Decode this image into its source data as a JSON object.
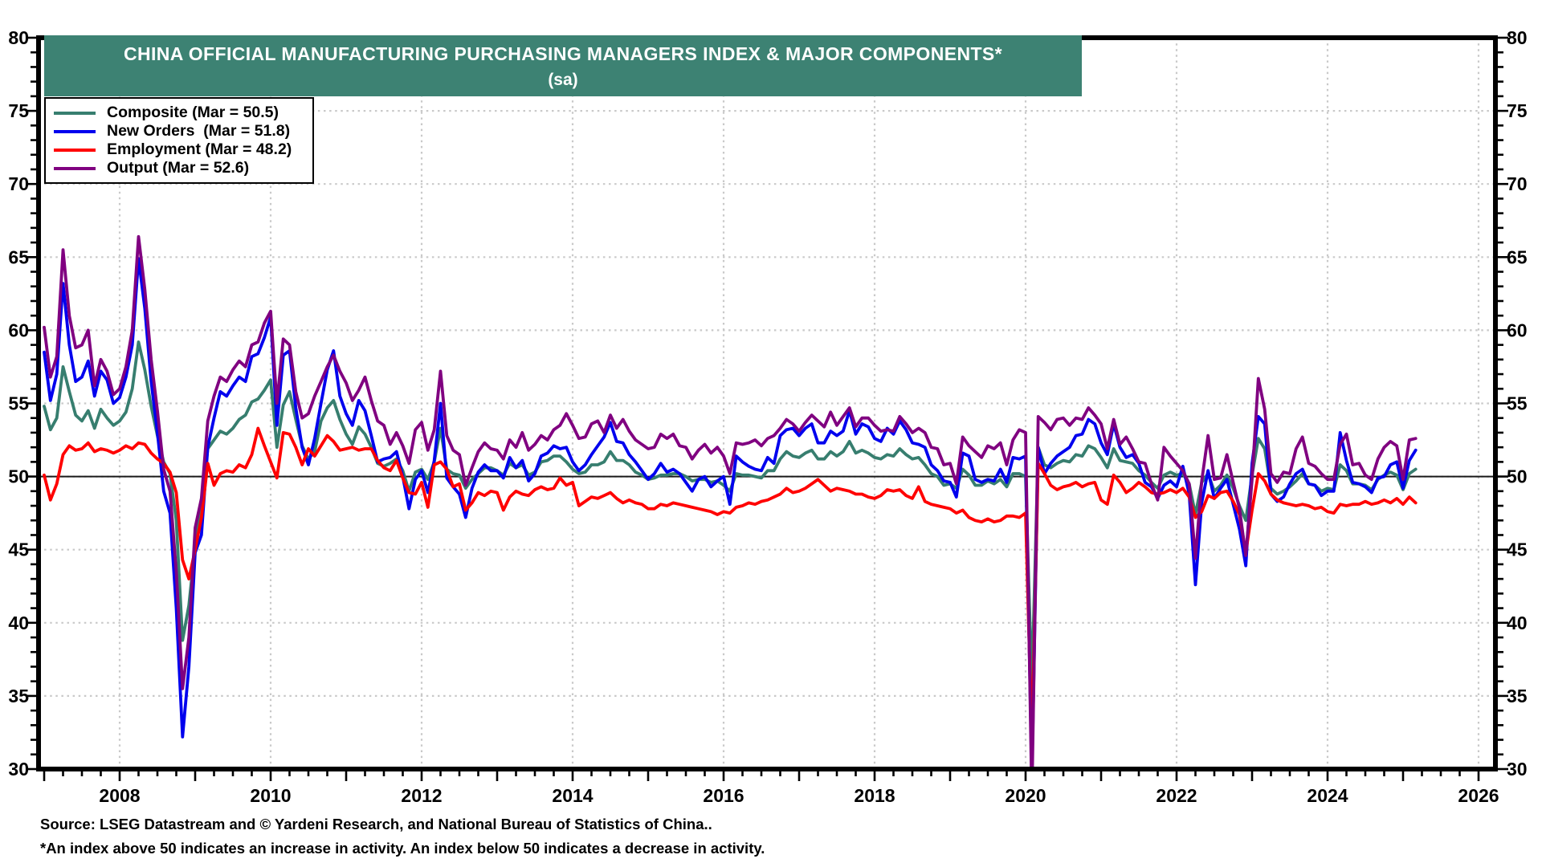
{
  "title": {
    "line1": "CHINA OFFICIAL MANUFACTURING  PURCHASING MANAGERS INDEX & MAJOR COMPONENTS*",
    "line2": "(sa)"
  },
  "colors": {
    "title_bar": "#3d8273",
    "composite": "#377e6f",
    "new_orders": "#0000ee",
    "employment": "#ff0000",
    "output": "#800080",
    "grid": "#c9c9c9",
    "frame": "#000000",
    "fifty_line": "#1a1a1a"
  },
  "footer": {
    "source": "Source: LSEG Datastream and © Yardeni Research, and National Bureau of Statistics of China..",
    "footnote": "*An index above 50 indicates an increase in activity. An index below 50 indicates a decrease in activity."
  },
  "chart_data": {
    "type": "line",
    "title": "CHINA OFFICIAL MANUFACTURING PURCHASING MANAGERS INDEX & MAJOR COMPONENTS* (sa)",
    "x_start": "2007-01",
    "x_end": "2025-03",
    "frequency": "monthly",
    "ylim": [
      30,
      80
    ],
    "xlim": [
      2006.92,
      2026.13
    ],
    "y_ticks": [
      30,
      35,
      40,
      45,
      50,
      55,
      60,
      65,
      70,
      75,
      80
    ],
    "x_ticks": [
      2008,
      2010,
      2012,
      2014,
      2016,
      2018,
      2020,
      2022,
      2024,
      2026
    ],
    "reference_line": 50,
    "grid": "dotted horizontal every 5 units, dotted vertical at even years",
    "legend_position": "top-left",
    "series": [
      {
        "name": "Composite",
        "legend_label": "Composite (Mar = 50.5)",
        "color_key": "composite",
        "latest": {
          "month": "Mar",
          "value": 50.5
        },
        "values": [
          54.8,
          53.2,
          54.0,
          57.5,
          55.8,
          54.2,
          53.8,
          54.5,
          53.3,
          54.6,
          54.0,
          53.5,
          53.8,
          54.4,
          56.0,
          59.2,
          57.3,
          54.8,
          52.8,
          51.0,
          50.2,
          47.0,
          38.8,
          41.2,
          45.3,
          48.0,
          51.9,
          52.5,
          53.1,
          52.9,
          53.3,
          53.9,
          54.2,
          55.1,
          55.3,
          55.9,
          56.6,
          52.0,
          54.9,
          55.8,
          53.9,
          52.1,
          51.2,
          51.7,
          53.8,
          54.7,
          55.2,
          53.9,
          52.9,
          52.2,
          53.4,
          52.9,
          52.0,
          50.9,
          50.7,
          50.9,
          51.2,
          50.4,
          49.0,
          50.3,
          50.5,
          49.8,
          51.0,
          53.3,
          50.5,
          50.2,
          50.1,
          49.2,
          49.8,
          50.2,
          50.6,
          50.6,
          50.4,
          50.1,
          50.9,
          50.6,
          50.8,
          50.1,
          50.3,
          51.0,
          51.1,
          51.4,
          51.4,
          51.0,
          50.5,
          50.2,
          50.3,
          50.8,
          50.8,
          51.0,
          51.7,
          51.1,
          51.1,
          50.8,
          50.3,
          50.1,
          49.8,
          49.9,
          50.1,
          50.1,
          50.2,
          50.2,
          50.0,
          49.7,
          49.8,
          49.8,
          49.6,
          49.7,
          49.4,
          49.0,
          50.2,
          50.1,
          50.1,
          50.0,
          49.9,
          50.4,
          50.4,
          51.2,
          51.7,
          51.4,
          51.3,
          51.6,
          51.8,
          51.2,
          51.2,
          51.7,
          51.4,
          51.7,
          52.4,
          51.6,
          51.8,
          51.6,
          51.3,
          51.2,
          51.5,
          51.4,
          51.9,
          51.5,
          51.2,
          51.3,
          50.8,
          50.2,
          50.0,
          49.4,
          49.5,
          49.2,
          50.5,
          50.1,
          49.4,
          49.4,
          49.7,
          49.5,
          49.8,
          49.3,
          50.2,
          50.2,
          50.0,
          35.7,
          52.0,
          50.8,
          50.6,
          50.9,
          51.1,
          51.0,
          51.5,
          51.4,
          52.1,
          51.9,
          51.3,
          50.6,
          51.9,
          51.1,
          51.0,
          50.9,
          50.4,
          50.1,
          49.6,
          49.2,
          50.1,
          50.3,
          50.1,
          50.2,
          49.5,
          47.4,
          49.6,
          50.2,
          49.0,
          49.4,
          50.1,
          49.2,
          48.0,
          47.0,
          50.1,
          52.6,
          51.9,
          49.2,
          48.8,
          49.0,
          49.3,
          49.7,
          50.2,
          49.5,
          49.4,
          49.0,
          49.2,
          49.1,
          50.8,
          50.4,
          49.5,
          49.5,
          49.4,
          49.1,
          49.8,
          50.1,
          50.3,
          50.1,
          49.1,
          50.2,
          50.5
        ]
      },
      {
        "name": "New Orders",
        "legend_label": "New Orders  (Mar = 51.8)",
        "color_key": "new_orders",
        "latest": {
          "month": "Mar",
          "value": 51.8
        },
        "values": [
          58.5,
          55.2,
          57.0,
          63.2,
          59.0,
          56.5,
          56.8,
          57.9,
          55.5,
          57.2,
          56.6,
          55.0,
          55.4,
          56.8,
          59.0,
          64.9,
          61.5,
          56.5,
          53.0,
          49.0,
          47.5,
          41.0,
          32.2,
          37.0,
          44.8,
          46.0,
          52.0,
          54.0,
          55.8,
          55.5,
          56.2,
          56.8,
          56.5,
          58.2,
          58.4,
          59.5,
          60.9,
          53.5,
          58.3,
          58.6,
          54.7,
          52.0,
          50.8,
          52.6,
          55.0,
          57.3,
          58.6,
          55.5,
          54.3,
          53.5,
          55.2,
          54.5,
          52.8,
          51.0,
          51.2,
          51.3,
          51.7,
          50.0,
          47.8,
          49.8,
          50.4,
          48.9,
          51.1,
          55.0,
          49.9,
          49.3,
          48.8,
          47.2,
          49.2,
          50.3,
          50.8,
          50.4,
          50.4,
          49.9,
          51.3,
          50.6,
          51.1,
          49.7,
          50.2,
          51.4,
          51.6,
          52.1,
          51.9,
          52.0,
          51.0,
          50.4,
          50.8,
          51.5,
          52.1,
          52.7,
          53.7,
          52.4,
          52.3,
          51.5,
          51.0,
          50.4,
          49.8,
          50.2,
          50.9,
          50.3,
          50.5,
          50.2,
          49.6,
          49.0,
          49.8,
          50.0,
          49.3,
          49.7,
          50.0,
          48.1,
          51.4,
          51.0,
          50.7,
          50.5,
          50.4,
          51.3,
          50.9,
          52.8,
          53.2,
          53.3,
          52.8,
          53.3,
          53.6,
          52.3,
          52.3,
          53.1,
          52.8,
          53.1,
          54.5,
          52.9,
          53.6,
          53.4,
          52.6,
          52.4,
          53.3,
          52.9,
          53.8,
          53.2,
          52.3,
          52.2,
          52.0,
          50.8,
          50.4,
          49.7,
          49.6,
          48.6,
          51.6,
          51.4,
          49.8,
          49.6,
          49.8,
          49.7,
          50.5,
          49.6,
          51.3,
          51.2,
          51.4,
          29.3,
          52.0,
          50.2,
          50.9,
          51.4,
          51.7,
          52.0,
          52.8,
          52.9,
          53.9,
          53.6,
          52.3,
          51.5,
          53.6,
          52.0,
          51.3,
          51.5,
          50.9,
          49.6,
          49.3,
          48.5,
          49.4,
          49.7,
          49.3,
          50.7,
          48.8,
          42.6,
          48.2,
          50.4,
          48.5,
          49.2,
          49.8,
          48.1,
          46.4,
          43.9,
          50.9,
          54.1,
          53.6,
          48.8,
          48.3,
          48.6,
          49.5,
          50.2,
          50.5,
          49.5,
          49.4,
          48.7,
          49.0,
          49.0,
          53.0,
          51.1,
          49.6,
          49.5,
          49.3,
          48.9,
          49.9,
          50.0,
          50.8,
          51.0,
          49.2,
          51.1,
          51.8
        ]
      },
      {
        "name": "Employment",
        "legend_label": "Employment (Mar = 48.2)",
        "color_key": "employment",
        "latest": {
          "month": "Mar",
          "value": 48.2
        },
        "values": [
          50.1,
          48.4,
          49.5,
          51.5,
          52.1,
          51.8,
          51.9,
          52.3,
          51.7,
          51.9,
          51.8,
          51.6,
          51.8,
          52.1,
          51.9,
          52.3,
          52.2,
          51.6,
          51.2,
          50.9,
          50.3,
          48.9,
          44.3,
          43.0,
          45.0,
          47.2,
          50.9,
          49.4,
          50.2,
          50.4,
          50.3,
          50.8,
          50.6,
          51.5,
          53.3,
          52.1,
          51.0,
          49.9,
          53.0,
          52.9,
          52.0,
          50.8,
          51.9,
          51.4,
          52.1,
          52.8,
          52.4,
          51.8,
          51.9,
          52.0,
          51.8,
          51.9,
          51.9,
          51.1,
          50.6,
          50.4,
          51.1,
          49.9,
          48.9,
          48.8,
          49.6,
          47.9,
          50.8,
          51.0,
          50.5,
          49.3,
          49.5,
          47.7,
          48.2,
          48.9,
          48.7,
          49.0,
          48.9,
          47.7,
          48.6,
          49.0,
          48.8,
          48.7,
          49.1,
          49.3,
          49.1,
          49.2,
          49.9,
          49.4,
          49.6,
          48.0,
          48.3,
          48.6,
          48.5,
          48.7,
          48.9,
          48.5,
          48.2,
          48.4,
          48.2,
          48.1,
          47.8,
          47.8,
          48.1,
          48.0,
          48.2,
          48.1,
          48.0,
          47.9,
          47.8,
          47.7,
          47.6,
          47.4,
          47.6,
          47.5,
          47.9,
          48.0,
          48.2,
          48.1,
          48.3,
          48.4,
          48.6,
          48.8,
          49.2,
          48.9,
          49.0,
          49.2,
          49.5,
          49.8,
          49.4,
          49.0,
          49.2,
          49.1,
          49.0,
          48.8,
          48.8,
          48.6,
          48.5,
          48.7,
          49.1,
          49.0,
          49.1,
          48.7,
          48.5,
          49.3,
          48.3,
          48.1,
          48.0,
          47.9,
          47.8,
          47.5,
          47.7,
          47.2,
          47.0,
          46.9,
          47.1,
          46.9,
          47.0,
          47.3,
          47.3,
          47.2,
          47.5,
          31.8,
          50.9,
          50.2,
          49.4,
          49.1,
          49.3,
          49.4,
          49.6,
          49.3,
          49.5,
          49.6,
          48.4,
          48.1,
          50.1,
          49.6,
          48.9,
          49.2,
          49.6,
          49.3,
          48.9,
          48.8,
          48.9,
          49.1,
          48.9,
          49.2,
          48.6,
          47.2,
          47.6,
          48.7,
          48.5,
          48.9,
          49.0,
          48.3,
          47.4,
          44.8,
          47.7,
          50.2,
          49.7,
          48.8,
          48.4,
          48.2,
          48.1,
          48.0,
          48.1,
          48.0,
          47.8,
          47.9,
          47.6,
          47.5,
          48.1,
          48.0,
          48.1,
          48.1,
          48.3,
          48.1,
          48.2,
          48.4,
          48.2,
          48.5,
          48.1,
          48.6,
          48.2
        ]
      },
      {
        "name": "Output",
        "legend_label": "Output (Mar = 52.6)",
        "color_key": "output",
        "latest": {
          "month": "Mar",
          "value": 52.6
        },
        "values": [
          60.2,
          56.8,
          58.2,
          65.5,
          61.0,
          58.8,
          59.0,
          60.0,
          56.2,
          58.0,
          57.2,
          55.6,
          56.0,
          57.5,
          60.0,
          66.4,
          62.8,
          58.0,
          54.5,
          50.5,
          49.0,
          43.5,
          35.5,
          39.0,
          46.5,
          48.5,
          53.8,
          55.5,
          56.8,
          56.5,
          57.3,
          57.9,
          57.5,
          59.0,
          59.2,
          60.5,
          61.3,
          55.0,
          59.4,
          59.0,
          55.8,
          54.0,
          54.3,
          55.5,
          56.5,
          57.5,
          58.3,
          57.2,
          56.4,
          55.2,
          55.9,
          56.8,
          55.2,
          53.8,
          53.5,
          52.2,
          53.0,
          52.1,
          50.9,
          53.2,
          53.7,
          51.8,
          53.2,
          57.2,
          52.8,
          51.8,
          51.5,
          49.4,
          50.6,
          51.7,
          52.3,
          51.9,
          51.8,
          51.2,
          52.5,
          52.0,
          53.0,
          51.8,
          52.2,
          52.8,
          52.5,
          53.2,
          53.5,
          54.3,
          53.5,
          52.6,
          52.7,
          53.6,
          53.8,
          53.0,
          54.2,
          53.3,
          53.9,
          53.1,
          52.5,
          52.2,
          51.9,
          52.0,
          52.9,
          52.6,
          52.9,
          52.1,
          52.0,
          51.2,
          51.8,
          52.2,
          51.6,
          52.0,
          51.4,
          50.2,
          52.3,
          52.2,
          52.3,
          52.5,
          52.1,
          52.6,
          52.8,
          53.3,
          53.9,
          53.6,
          53.1,
          53.7,
          54.2,
          53.8,
          53.4,
          54.4,
          53.5,
          54.1,
          54.7,
          53.4,
          54.0,
          54.0,
          53.5,
          53.1,
          53.2,
          53.1,
          54.1,
          53.6,
          53.0,
          53.3,
          53.0,
          52.0,
          51.9,
          50.8,
          50.9,
          49.5,
          52.7,
          52.1,
          51.7,
          51.3,
          52.1,
          51.9,
          52.3,
          50.8,
          52.5,
          53.2,
          53.0,
          27.8,
          54.1,
          53.7,
          53.2,
          53.9,
          54.0,
          53.5,
          54.0,
          53.9,
          54.7,
          54.2,
          53.6,
          51.9,
          53.9,
          52.2,
          52.7,
          51.9,
          51.0,
          50.9,
          49.5,
          48.4,
          52.0,
          51.4,
          50.9,
          50.4,
          49.5,
          44.4,
          49.7,
          52.8,
          49.8,
          49.9,
          51.5,
          49.6,
          47.8,
          44.6,
          49.8,
          56.7,
          54.6,
          50.2,
          49.6,
          50.3,
          50.2,
          51.9,
          52.7,
          50.9,
          50.7,
          50.2,
          49.8,
          49.8,
          52.2,
          52.9,
          50.8,
          50.9,
          50.1,
          49.8,
          51.2,
          52.0,
          52.4,
          52.1,
          49.8,
          52.5,
          52.6
        ]
      }
    ]
  }
}
